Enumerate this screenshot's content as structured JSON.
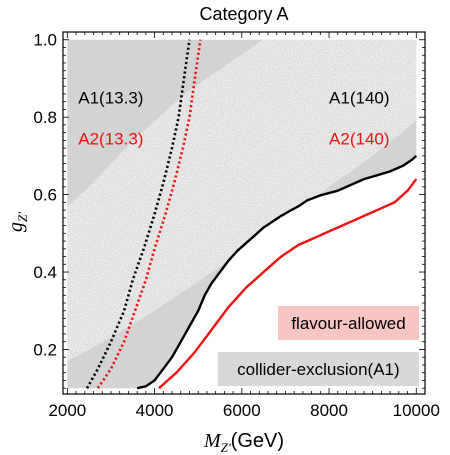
{
  "chart_data": {
    "type": "area",
    "title": "Category A",
    "xlabel_main": "M",
    "xlabel_sub": "Z'",
    "xlabel_unit": "(GeV)",
    "ylabel_main": "g",
    "ylabel_sub": "Z'",
    "xlim": [
      1900,
      10200
    ],
    "ylim": [
      0.085,
      1.02
    ],
    "x_ticks": [
      2000,
      4000,
      6000,
      8000,
      10000
    ],
    "x_tick_labels": [
      "2000",
      "4000",
      "6000",
      "8000",
      "10000"
    ],
    "y_ticks": [
      0.2,
      0.4,
      0.6,
      0.8,
      1.0
    ],
    "y_tick_labels": [
      "0.2",
      "0.4",
      "0.6",
      "0.8",
      "1.0"
    ],
    "colors": {
      "gray": "#d3d3d3",
      "pink": "#f7a0a0",
      "black": "#000000",
      "red": "#ee1111",
      "legend_pink_bg": "#f9c4c4",
      "legend_gray_bg": "#d8d8d8"
    },
    "regions": [
      {
        "name": "collider-exclusion(A1)",
        "color": "#d3d3d3",
        "polygon": [
          [
            2000,
            1.0
          ],
          [
            10000,
            1.0
          ],
          [
            10000,
            0.7
          ],
          [
            9900,
            0.69
          ],
          [
            9700,
            0.675
          ],
          [
            9400,
            0.66
          ],
          [
            9100,
            0.65
          ],
          [
            8800,
            0.64
          ],
          [
            8500,
            0.625
          ],
          [
            8200,
            0.61
          ],
          [
            7800,
            0.598
          ],
          [
            7500,
            0.585
          ],
          [
            7300,
            0.57
          ],
          [
            7100,
            0.558
          ],
          [
            6900,
            0.545
          ],
          [
            6700,
            0.53
          ],
          [
            6500,
            0.515
          ],
          [
            6300,
            0.495
          ],
          [
            6100,
            0.475
          ],
          [
            5900,
            0.455
          ],
          [
            5700,
            0.43
          ],
          [
            5500,
            0.4
          ],
          [
            5300,
            0.37
          ],
          [
            5150,
            0.34
          ],
          [
            5000,
            0.3
          ],
          [
            4800,
            0.26
          ],
          [
            4600,
            0.22
          ],
          [
            4400,
            0.18
          ],
          [
            4200,
            0.15
          ],
          [
            4000,
            0.12
          ],
          [
            3800,
            0.105
          ],
          [
            3600,
            0.1
          ],
          [
            2000,
            0.1
          ]
        ]
      },
      {
        "name": "flavour-allowed",
        "color": "#f7a0a0",
        "polygon": [
          [
            2000,
            0.17
          ],
          [
            2500,
            0.2
          ],
          [
            3200,
            0.245
          ],
          [
            4000,
            0.3
          ],
          [
            5000,
            0.375
          ],
          [
            6000,
            0.455
          ],
          [
            7000,
            0.53
          ],
          [
            8000,
            0.62
          ],
          [
            9000,
            0.7
          ],
          [
            10000,
            0.79
          ],
          [
            10000,
            1.0
          ],
          [
            6500,
            1.0
          ],
          [
            4800,
            0.87
          ],
          [
            3500,
            0.74
          ],
          [
            2500,
            0.62
          ],
          [
            2000,
            0.57
          ]
        ]
      }
    ],
    "series": [
      {
        "name": "A1(13.3)",
        "style": "dotted",
        "color": "#000000",
        "points": [
          [
            2450,
            0.1
          ],
          [
            2700,
            0.15
          ],
          [
            3000,
            0.22
          ],
          [
            3300,
            0.3
          ],
          [
            3500,
            0.38
          ],
          [
            3750,
            0.46
          ],
          [
            4000,
            0.55
          ],
          [
            4200,
            0.63
          ],
          [
            4400,
            0.72
          ],
          [
            4550,
            0.8
          ],
          [
            4650,
            0.88
          ],
          [
            4750,
            0.96
          ],
          [
            4800,
            1.0
          ]
        ]
      },
      {
        "name": "A2(13.3)",
        "style": "dotted",
        "color": "#ee1111",
        "points": [
          [
            2700,
            0.1
          ],
          [
            3000,
            0.15
          ],
          [
            3300,
            0.22
          ],
          [
            3550,
            0.3
          ],
          [
            3800,
            0.38
          ],
          [
            4000,
            0.46
          ],
          [
            4250,
            0.55
          ],
          [
            4450,
            0.63
          ],
          [
            4650,
            0.72
          ],
          [
            4800,
            0.8
          ],
          [
            4900,
            0.88
          ],
          [
            5000,
            0.96
          ],
          [
            5050,
            1.0
          ]
        ]
      },
      {
        "name": "A1(140)",
        "style": "solid",
        "color": "#000000",
        "points": [
          [
            3600,
            0.1
          ],
          [
            3800,
            0.105
          ],
          [
            4000,
            0.12
          ],
          [
            4200,
            0.15
          ],
          [
            4400,
            0.18
          ],
          [
            4600,
            0.22
          ],
          [
            4800,
            0.26
          ],
          [
            5000,
            0.3
          ],
          [
            5150,
            0.34
          ],
          [
            5300,
            0.37
          ],
          [
            5500,
            0.4
          ],
          [
            5700,
            0.43
          ],
          [
            5900,
            0.455
          ],
          [
            6100,
            0.475
          ],
          [
            6300,
            0.495
          ],
          [
            6500,
            0.515
          ],
          [
            6700,
            0.53
          ],
          [
            6900,
            0.545
          ],
          [
            7100,
            0.558
          ],
          [
            7300,
            0.57
          ],
          [
            7500,
            0.585
          ],
          [
            7800,
            0.598
          ],
          [
            8200,
            0.61
          ],
          [
            8500,
            0.625
          ],
          [
            8800,
            0.64
          ],
          [
            9100,
            0.65
          ],
          [
            9400,
            0.66
          ],
          [
            9700,
            0.675
          ],
          [
            9900,
            0.69
          ],
          [
            10000,
            0.7
          ]
        ]
      },
      {
        "name": "A2(140)",
        "style": "solid",
        "color": "#ee1111",
        "points": [
          [
            4100,
            0.1
          ],
          [
            4300,
            0.12
          ],
          [
            4500,
            0.14
          ],
          [
            4700,
            0.165
          ],
          [
            4900,
            0.19
          ],
          [
            5100,
            0.22
          ],
          [
            5300,
            0.25
          ],
          [
            5500,
            0.28
          ],
          [
            5700,
            0.31
          ],
          [
            5900,
            0.335
          ],
          [
            6100,
            0.36
          ],
          [
            6300,
            0.38
          ],
          [
            6500,
            0.4
          ],
          [
            6700,
            0.42
          ],
          [
            6900,
            0.44
          ],
          [
            7100,
            0.455
          ],
          [
            7300,
            0.47
          ],
          [
            7500,
            0.48
          ],
          [
            7800,
            0.495
          ],
          [
            8000,
            0.505
          ],
          [
            8300,
            0.52
          ],
          [
            8600,
            0.535
          ],
          [
            8900,
            0.55
          ],
          [
            9200,
            0.565
          ],
          [
            9500,
            0.58
          ],
          [
            9800,
            0.61
          ],
          [
            10000,
            0.64
          ]
        ]
      }
    ],
    "annotations": [
      {
        "text": "A1(13.3)",
        "color": "#000000",
        "x": 2250,
        "y": 0.835
      },
      {
        "text": "A2(13.3)",
        "color": "#ee1111",
        "x": 2250,
        "y": 0.73
      },
      {
        "text": "A1(140)",
        "color": "#000000",
        "x": 8000,
        "y": 0.835
      },
      {
        "text": "A2(140)",
        "color": "#ee1111",
        "x": 8000,
        "y": 0.73
      }
    ],
    "legend": {
      "placement": "bottom-right",
      "items": [
        {
          "label": "flavour-allowed",
          "bg": "#f9c4c4"
        },
        {
          "label": "collider-exclusion(A1)",
          "bg": "#d8d8d8"
        }
      ]
    }
  }
}
